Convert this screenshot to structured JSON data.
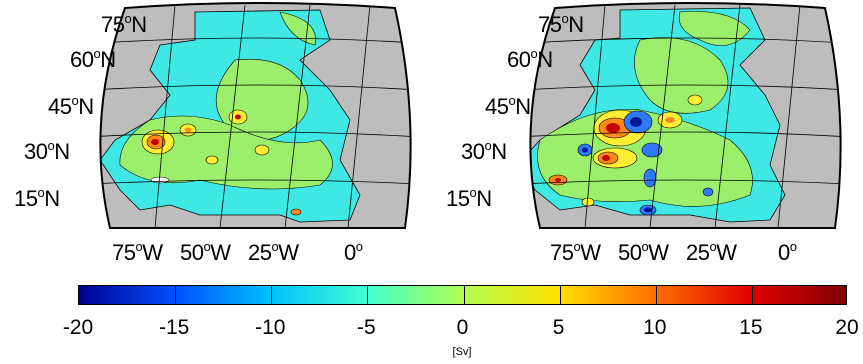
{
  "panels": [
    {
      "lat_labels": [
        {
          "deg": "75",
          "hemi": "N"
        },
        {
          "deg": "60",
          "hemi": "N"
        },
        {
          "deg": "45",
          "hemi": "N"
        },
        {
          "deg": "30",
          "hemi": "N"
        },
        {
          "deg": "15",
          "hemi": "N"
        }
      ],
      "lon_labels": [
        {
          "deg": "75",
          "hemi": "W"
        },
        {
          "deg": "50",
          "hemi": "W"
        },
        {
          "deg": "25",
          "hemi": "W"
        },
        {
          "deg": "0",
          "hemi": ""
        }
      ]
    },
    {
      "lat_labels": [
        {
          "deg": "75",
          "hemi": "N"
        },
        {
          "deg": "60",
          "hemi": "N"
        },
        {
          "deg": "45",
          "hemi": "N"
        },
        {
          "deg": "30",
          "hemi": "N"
        },
        {
          "deg": "15",
          "hemi": "N"
        }
      ],
      "lon_labels": [
        {
          "deg": "75",
          "hemi": "W"
        },
        {
          "deg": "50",
          "hemi": "W"
        },
        {
          "deg": "25",
          "hemi": "W"
        },
        {
          "deg": "0",
          "hemi": ""
        }
      ]
    }
  ],
  "colorbar": {
    "labels": [
      "-20",
      "-15",
      "-10",
      "-5",
      "0",
      "5",
      "10",
      "15",
      "20"
    ],
    "unit": "[Sv]",
    "colors": [
      "#00008f",
      "#0050ff",
      "#00c0ff",
      "#40ffd0",
      "#b0ff50",
      "#ffe000",
      "#ff7000",
      "#e00000",
      "#800000"
    ]
  },
  "colors": {
    "land": "#bdbdbd",
    "ocean_base": "#3fe8e4",
    "positive_light": "#9bef6b",
    "positive_mid": "#ffee33",
    "positive_high": "#ff8a1a",
    "positive_max": "#c40000",
    "negative_mid": "#2f7bff",
    "negative_max": "#001a9c"
  }
}
